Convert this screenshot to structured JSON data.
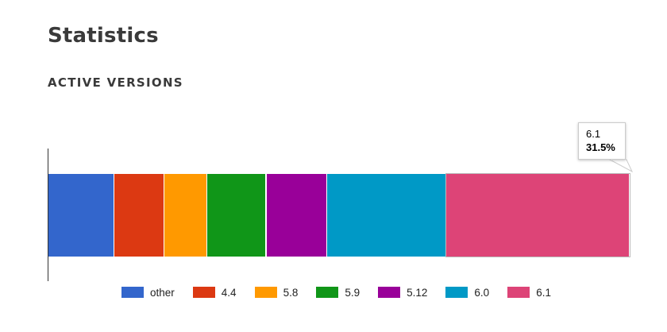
{
  "page": {
    "title": "Statistics",
    "section_title": "ACTIVE VERSIONS"
  },
  "tooltip": {
    "label": "6.1",
    "value": "31.5%"
  },
  "chart_data": {
    "type": "bar",
    "stacked": true,
    "orientation": "horizontal",
    "categories": [
      "other",
      "4.4",
      "5.8",
      "5.9",
      "5.12",
      "6.0",
      "6.1"
    ],
    "values": [
      11.3,
      8.7,
      7.3,
      10.2,
      10.5,
      20.5,
      31.5
    ],
    "unit": "%",
    "colors": [
      "#3366cc",
      "#dc3912",
      "#ff9900",
      "#109618",
      "#990099",
      "#0099c6",
      "#dd4477"
    ],
    "highlighted": "6.1",
    "legend_position": "bottom",
    "grid": false,
    "xlim": [
      0,
      100
    ]
  },
  "legend": {
    "items": [
      {
        "label": "other",
        "color": "#3366cc"
      },
      {
        "label": "4.4",
        "color": "#dc3912"
      },
      {
        "label": "5.8",
        "color": "#ff9900"
      },
      {
        "label": "5.9",
        "color": "#109618"
      },
      {
        "label": "5.12",
        "color": "#990099"
      },
      {
        "label": "6.0",
        "color": "#0099c6"
      },
      {
        "label": "6.1",
        "color": "#dd4477"
      }
    ]
  }
}
